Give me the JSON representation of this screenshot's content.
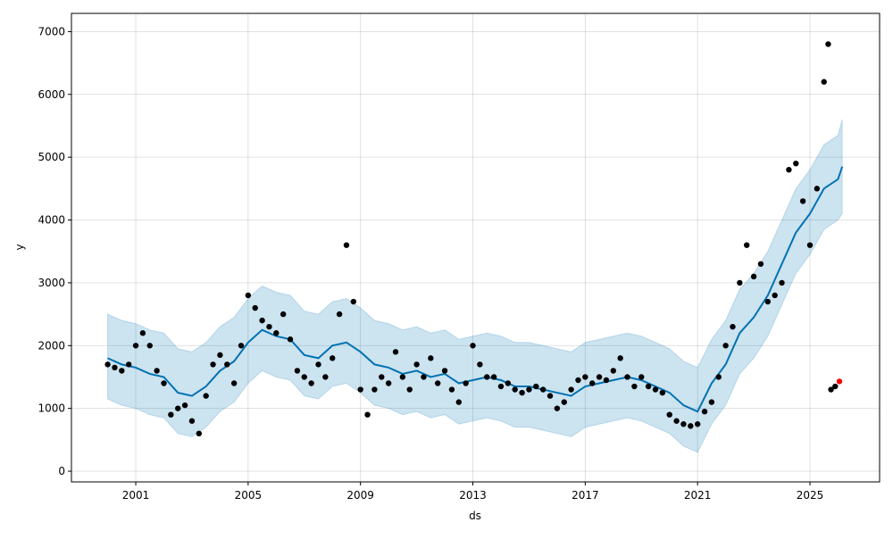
{
  "chart_data": {
    "type": "forecast",
    "xlabel": "ds",
    "ylabel": "y",
    "xlim": [
      1998.71,
      2027.48
    ],
    "ylim": [
      -170,
      7290
    ],
    "xticks": [
      2001,
      2005,
      2009,
      2013,
      2017,
      2021,
      2025
    ],
    "yticks": [
      0,
      1000,
      2000,
      3000,
      4000,
      5000,
      6000,
      7000
    ],
    "grid": true,
    "series": [
      {
        "type": "scatter",
        "color": "#000000",
        "x": [
          2000,
          2000.25,
          2000.5,
          2000.75,
          2001,
          2001.25,
          2001.5,
          2001.75,
          2002,
          2002.25,
          2002.5,
          2002.75,
          2003,
          2003.25,
          2003.5,
          2003.75,
          2004,
          2004.25,
          2004.5,
          2004.75,
          2005,
          2005.25,
          2005.5,
          2005.75,
          2006,
          2006.25,
          2006.5,
          2006.75,
          2007,
          2007.25,
          2007.5,
          2007.75,
          2008,
          2008.25,
          2008.5,
          2008.75,
          2009,
          2009.25,
          2009.5,
          2009.75,
          2010,
          2010.25,
          2010.5,
          2010.75,
          2011,
          2011.25,
          2011.5,
          2011.75,
          2012,
          2012.25,
          2012.5,
          2012.75,
          2013,
          2013.25,
          2013.5,
          2013.75,
          2014,
          2014.25,
          2014.5,
          2014.75,
          2015,
          2015.25,
          2015.5,
          2015.75,
          2016,
          2016.25,
          2016.5,
          2016.75,
          2017,
          2017.25,
          2017.5,
          2017.75,
          2018,
          2018.25,
          2018.5,
          2018.75,
          2019,
          2019.25,
          2019.5,
          2019.75,
          2020,
          2020.25,
          2020.5,
          2020.75,
          2021,
          2021.25,
          2021.5,
          2021.75,
          2022,
          2022.25,
          2022.5,
          2022.75,
          2023,
          2023.25,
          2023.5,
          2023.75,
          2024,
          2024.25,
          2024.5,
          2024.75,
          2025,
          2025.25,
          2025.5,
          2025.65,
          2025.75,
          2025.9
        ],
        "values": [
          1700,
          1650,
          1600,
          1700,
          2000,
          2200,
          2000,
          1600,
          1400,
          900,
          1000,
          1050,
          800,
          600,
          1200,
          1700,
          1850,
          1700,
          1400,
          2000,
          2800,
          2600,
          2400,
          2300,
          2200,
          2500,
          2100,
          1600,
          1500,
          1400,
          1700,
          1500,
          1800,
          2500,
          3600,
          2700,
          1300,
          900,
          1300,
          1500,
          1400,
          1900,
          1500,
          1300,
          1700,
          1500,
          1800,
          1400,
          1600,
          1300,
          1100,
          1400,
          2000,
          1700,
          1500,
          1500,
          1350,
          1400,
          1300,
          1250,
          1300,
          1350,
          1300,
          1200,
          1000,
          1100,
          1300,
          1450,
          1500,
          1400,
          1500,
          1450,
          1600,
          1800,
          1500,
          1350,
          1500,
          1350,
          1300,
          1250,
          900,
          800,
          750,
          720,
          750,
          950,
          1100,
          1500,
          2000,
          2300,
          3000,
          3600,
          3100,
          3300,
          2700,
          2800,
          3000,
          4800,
          4900,
          4300,
          3600,
          4500,
          6200,
          6800,
          1300,
          1350
        ]
      },
      {
        "type": "line",
        "color": "#0072b2",
        "x": [
          2000,
          2000.5,
          2001,
          2001.5,
          2002,
          2002.5,
          2003,
          2003.5,
          2004,
          2004.5,
          2005,
          2005.5,
          2006,
          2006.5,
          2007,
          2007.5,
          2008,
          2008.5,
          2009,
          2009.5,
          2010,
          2010.5,
          2011,
          2011.5,
          2012,
          2012.5,
          2013,
          2013.5,
          2014,
          2014.5,
          2015,
          2015.5,
          2016,
          2016.5,
          2017,
          2017.5,
          2018,
          2018.5,
          2019,
          2019.5,
          2020,
          2020.5,
          2021,
          2021.5,
          2022,
          2022.5,
          2023,
          2023.5,
          2024,
          2024.5,
          2025,
          2025.5,
          2026,
          2026.15
        ],
        "values": [
          1800,
          1700,
          1650,
          1550,
          1500,
          1250,
          1200,
          1350,
          1600,
          1750,
          2050,
          2250,
          2150,
          2100,
          1850,
          1800,
          2000,
          2050,
          1900,
          1700,
          1650,
          1550,
          1600,
          1500,
          1550,
          1400,
          1450,
          1500,
          1450,
          1350,
          1350,
          1300,
          1250,
          1200,
          1350,
          1400,
          1450,
          1500,
          1450,
          1350,
          1250,
          1050,
          950,
          1400,
          1700,
          2200,
          2450,
          2800,
          3300,
          3800,
          4100,
          4500,
          4650,
          4850
        ],
        "lower": [
          1150,
          1050,
          1000,
          900,
          850,
          600,
          550,
          700,
          950,
          1100,
          1400,
          1600,
          1500,
          1450,
          1200,
          1150,
          1350,
          1400,
          1250,
          1050,
          1000,
          900,
          950,
          850,
          900,
          750,
          800,
          850,
          800,
          700,
          700,
          650,
          600,
          550,
          700,
          750,
          800,
          850,
          800,
          700,
          600,
          400,
          300,
          750,
          1050,
          1550,
          1800,
          2150,
          2650,
          3150,
          3450,
          3850,
          4000,
          4100
        ],
        "upper": [
          2500,
          2400,
          2350,
          2250,
          2200,
          1950,
          1900,
          2050,
          2300,
          2450,
          2750,
          2950,
          2850,
          2800,
          2550,
          2500,
          2700,
          2750,
          2600,
          2400,
          2350,
          2250,
          2300,
          2200,
          2250,
          2100,
          2150,
          2200,
          2150,
          2050,
          2050,
          2000,
          1950,
          1900,
          2050,
          2100,
          2150,
          2200,
          2150,
          2050,
          1950,
          1750,
          1650,
          2100,
          2400,
          2900,
          3150,
          3500,
          4000,
          4500,
          4800,
          5200,
          5350,
          5600
        ]
      },
      {
        "type": "scatter",
        "color": "#ff0000",
        "x": [
          2026.05
        ],
        "values": [
          1430
        ]
      }
    ]
  }
}
